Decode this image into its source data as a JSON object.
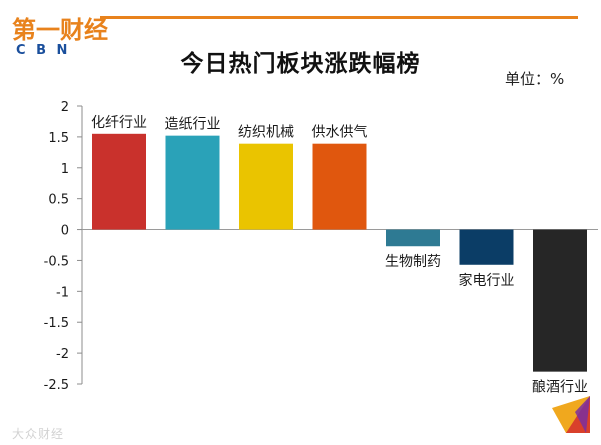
{
  "logo": {
    "cn_text": "第一财经",
    "en_text": "C B N",
    "colors": {
      "orange": "#e8821c",
      "blue": "#1a4f9c"
    }
  },
  "watermark": "大众财经",
  "chart_data": {
    "type": "bar",
    "title": "今日热门板块涨跌幅榜",
    "unit_label": "单位：%",
    "categories": [
      "化纤行业",
      "造纸行业",
      "纺织机械",
      "供水供气",
      "生物制药",
      "家电行业",
      "酿酒行业"
    ],
    "values": [
      1.55,
      1.52,
      1.39,
      1.39,
      -0.27,
      -0.57,
      -2.3
    ],
    "colors": [
      "#c9312c",
      "#2aa2b8",
      "#eac400",
      "#e0570e",
      "#2e7a93",
      "#0b3d66",
      "#262626"
    ],
    "ylim": [
      -2.5,
      2
    ],
    "yticks": [
      "2",
      "1.5",
      "1",
      "0.5",
      "0",
      "-0.5",
      "-1",
      "-1.5",
      "-2",
      "-2.5"
    ],
    "ytick_values": [
      2,
      1.5,
      1,
      0.5,
      0,
      -0.5,
      -1,
      -1.5,
      -2,
      -2.5
    ],
    "xlabel": "",
    "ylabel": "",
    "grid": false
  }
}
